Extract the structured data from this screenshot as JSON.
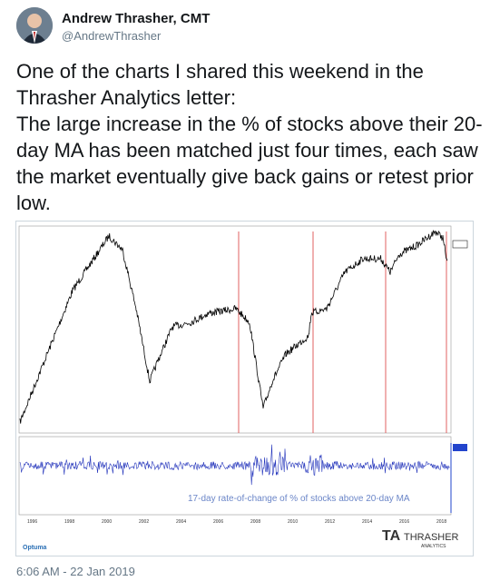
{
  "header": {
    "name": "Andrew Thrasher, CMT",
    "handle": "@AndrewThrasher"
  },
  "tweet": {
    "paragraphs": [
      "One of the charts I shared this weekend in the Thrasher Analytics letter:",
      "The large increase in the % of stocks above their 20-day MA has been matched just four times, each saw the market eventually give back gains or retest prior low."
    ]
  },
  "image": {
    "annotation": "17-day rate-of-change of % of stocks above 20-day MA",
    "years": [
      "1996",
      "1998",
      "2000",
      "2002",
      "2004",
      "2006",
      "2008",
      "2010",
      "2012",
      "2014",
      "2016",
      "2018"
    ],
    "logo": {
      "brand": "THRASHER",
      "sub": "ANALYTICS",
      "vendor": "Optuma"
    }
  },
  "timestamp": "6:06 AM - 22 Jan 2019"
}
